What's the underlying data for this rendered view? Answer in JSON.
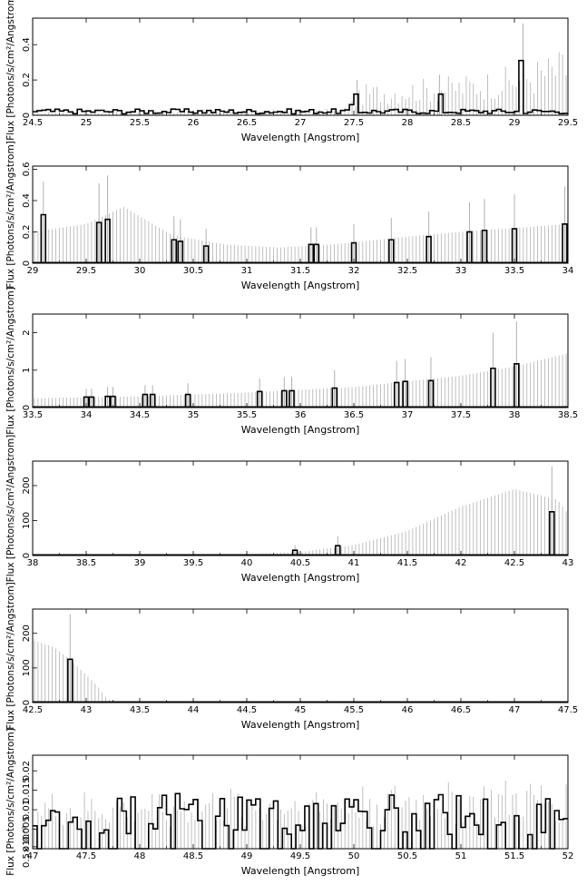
{
  "common": {
    "ylabel": "Flux [Photons/s/cm²/Angstrom]",
    "xlabel": "Wavelength [Angstrom]",
    "colors": {
      "hist": "#000000",
      "err": "#b0b0b0",
      "axis": "#000000"
    }
  },
  "chart_data": [
    {
      "type": "step-histogram-with-errorbars",
      "xlabel": "Wavelength [Angstrom]",
      "ylabel": "Flux [Photons/s/cm²/Angstrom]",
      "xlim": [
        24.5,
        29.5
      ],
      "ylim": [
        0,
        0.55
      ],
      "xticks": [
        "24.5",
        "25",
        "25.5",
        "26",
        "26.5",
        "27",
        "27.5",
        "28",
        "28.5",
        "29",
        "29.5"
      ],
      "yticks": [
        "0",
        "0.2",
        "0.4"
      ],
      "spikes": [
        [
          27.47,
          0.06
        ],
        [
          27.53,
          0.12
        ],
        [
          28.3,
          0.12
        ],
        [
          29.08,
          0.31
        ]
      ],
      "baseline": 0.02,
      "noise": true,
      "err_curve": [
        [
          24.5,
          0.01
        ],
        [
          27.4,
          0.02
        ],
        [
          27.6,
          0.1
        ],
        [
          28.5,
          0.13
        ],
        [
          29.0,
          0.16
        ],
        [
          29.5,
          0.22
        ]
      ],
      "err_spikes": [
        [
          27.53,
          0.2
        ],
        [
          28.3,
          0.23
        ],
        [
          29.08,
          0.52
        ]
      ]
    },
    {
      "type": "step-histogram-with-errorbars",
      "xlabel": "Wavelength [Angstrom]",
      "ylabel": "Flux [Photons/s/cm²/Angstrom]",
      "xlim": [
        29,
        34
      ],
      "ylim": [
        0,
        0.62
      ],
      "xticks": [
        "29",
        "29.5",
        "30",
        "30.5",
        "31",
        "31.5",
        "32",
        "32.5",
        "33",
        "33.5",
        "34"
      ],
      "yticks": [
        "0",
        "0.2",
        "0.4",
        "0.6"
      ],
      "spikes": [
        [
          29.1,
          0.31
        ],
        [
          29.62,
          0.26
        ],
        [
          29.7,
          0.28
        ],
        [
          30.32,
          0.15
        ],
        [
          30.38,
          0.14
        ],
        [
          30.62,
          0.11
        ],
        [
          31.6,
          0.12
        ],
        [
          31.65,
          0.12
        ],
        [
          32.0,
          0.13
        ],
        [
          32.35,
          0.15
        ],
        [
          32.7,
          0.17
        ],
        [
          33.08,
          0.2
        ],
        [
          33.22,
          0.21
        ],
        [
          33.5,
          0.22
        ],
        [
          33.97,
          0.25
        ]
      ],
      "baseline": 0.0,
      "noise": false,
      "err_curve": [
        [
          29.0,
          0.2
        ],
        [
          29.5,
          0.25
        ],
        [
          29.85,
          0.36
        ],
        [
          30.3,
          0.18
        ],
        [
          30.8,
          0.12
        ],
        [
          31.3,
          0.1
        ],
        [
          31.8,
          0.12
        ],
        [
          32.5,
          0.17
        ],
        [
          33.0,
          0.2
        ],
        [
          34.0,
          0.25
        ]
      ],
      "err_spikes": [
        [
          29.1,
          0.52
        ],
        [
          29.62,
          0.51
        ],
        [
          29.7,
          0.56
        ],
        [
          30.32,
          0.3
        ],
        [
          30.38,
          0.28
        ],
        [
          30.62,
          0.22
        ],
        [
          31.6,
          0.23
        ],
        [
          31.65,
          0.23
        ],
        [
          32.0,
          0.25
        ],
        [
          32.35,
          0.29
        ],
        [
          32.7,
          0.33
        ],
        [
          33.08,
          0.39
        ],
        [
          33.22,
          0.41
        ],
        [
          33.5,
          0.44
        ],
        [
          33.97,
          0.49
        ]
      ]
    },
    {
      "type": "step-histogram-with-errorbars",
      "xlabel": "Wavelength [Angstrom]",
      "ylabel": "Flux [Photons/s/cm²/Angstrom]",
      "xlim": [
        33.5,
        38.5
      ],
      "ylim": [
        0,
        2.5
      ],
      "xticks": [
        "33.5",
        "34",
        "34.5",
        "35",
        "35.5",
        "36",
        "36.5",
        "37",
        "37.5",
        "38",
        "38.5"
      ],
      "yticks": [
        "0",
        "1",
        "2"
      ],
      "spikes": [
        [
          34.0,
          0.28
        ],
        [
          34.05,
          0.28
        ],
        [
          34.2,
          0.3
        ],
        [
          34.25,
          0.3
        ],
        [
          34.55,
          0.35
        ],
        [
          34.62,
          0.35
        ],
        [
          34.95,
          0.35
        ],
        [
          35.62,
          0.43
        ],
        [
          35.85,
          0.45
        ],
        [
          35.92,
          0.45
        ],
        [
          36.32,
          0.52
        ],
        [
          36.9,
          0.67
        ],
        [
          36.98,
          0.7
        ],
        [
          37.22,
          0.72
        ],
        [
          37.8,
          1.05
        ],
        [
          38.02,
          1.17
        ]
      ],
      "baseline": 0.0,
      "noise": false,
      "err_curve": [
        [
          33.5,
          0.25
        ],
        [
          34.5,
          0.3
        ],
        [
          35.5,
          0.4
        ],
        [
          36.5,
          0.55
        ],
        [
          37.5,
          0.85
        ],
        [
          38.0,
          1.1
        ],
        [
          38.5,
          1.45
        ]
      ],
      "err_spikes": [
        [
          34.0,
          0.5
        ],
        [
          34.05,
          0.5
        ],
        [
          34.2,
          0.55
        ],
        [
          34.25,
          0.55
        ],
        [
          34.55,
          0.6
        ],
        [
          34.62,
          0.6
        ],
        [
          34.95,
          0.65
        ],
        [
          35.62,
          0.78
        ],
        [
          35.85,
          0.82
        ],
        [
          35.92,
          0.82
        ],
        [
          36.32,
          1.0
        ],
        [
          36.9,
          1.25
        ],
        [
          36.98,
          1.3
        ],
        [
          37.22,
          1.35
        ],
        [
          37.8,
          2.0
        ],
        [
          38.02,
          2.3
        ]
      ]
    },
    {
      "type": "step-histogram-with-errorbars",
      "xlabel": "Wavelength [Angstrom]",
      "ylabel": "Flux [Photons/s/cm²/Angstrom]",
      "xlim": [
        38,
        43
      ],
      "ylim": [
        0,
        270
      ],
      "xticks": [
        "38",
        "38.5",
        "39",
        "39.5",
        "40",
        "40.5",
        "41",
        "41.5",
        "42",
        "42.5",
        "43"
      ],
      "yticks": [
        "0",
        "100",
        "200"
      ],
      "spikes": [
        [
          40.45,
          15
        ],
        [
          40.85,
          28
        ],
        [
          42.85,
          125
        ]
      ],
      "baseline": 0.0,
      "noise": false,
      "err_curve": [
        [
          38.0,
          0
        ],
        [
          40.0,
          4
        ],
        [
          40.5,
          10
        ],
        [
          41.0,
          30
        ],
        [
          41.5,
          70
        ],
        [
          42.0,
          140
        ],
        [
          42.5,
          190
        ],
        [
          42.9,
          160
        ],
        [
          43.0,
          120
        ]
      ],
      "err_spikes": [
        [
          40.45,
          30
        ],
        [
          40.85,
          55
        ],
        [
          42.85,
          255
        ]
      ]
    },
    {
      "type": "step-histogram-with-errorbars",
      "xlabel": "Wavelength [Angstrom]",
      "ylabel": "Flux [Photons/s/cm²/Angstrom]",
      "xlim": [
        42.5,
        47.5
      ],
      "ylim": [
        0,
        270
      ],
      "xticks": [
        "42.5",
        "43",
        "43.5",
        "44",
        "44.5",
        "45",
        "45.5",
        "46",
        "46.5",
        "47",
        "47.5"
      ],
      "yticks": [
        "0",
        "100",
        "200"
      ],
      "spikes": [
        [
          42.85,
          125
        ]
      ],
      "baseline": 0.0,
      "noise": false,
      "err_curve": [
        [
          42.5,
          180
        ],
        [
          42.7,
          160
        ],
        [
          42.9,
          110
        ],
        [
          43.1,
          50
        ],
        [
          43.2,
          10
        ],
        [
          43.3,
          0
        ]
      ],
      "err_spikes": [
        [
          42.85,
          255
        ]
      ]
    },
    {
      "type": "step-histogram-with-errorbars",
      "xlabel": "Wavelength [Angstrom]",
      "ylabel": "Flux [Photons/s/cm²/Angstrom]",
      "xlim": [
        47,
        52
      ],
      "ylim": [
        0,
        0.024
      ],
      "xticks": [
        "47",
        "47.5",
        "48",
        "48.5",
        "49",
        "49.5",
        "50",
        "50.5",
        "51",
        "51.5",
        "52"
      ],
      "yticks": [
        "0",
        "0.5×10⁻³",
        "0.005",
        "0.01",
        "0.015",
        "0.02"
      ],
      "spikes": [],
      "baseline": 0.0,
      "noise": true,
      "err_curve": [
        [
          47,
          0.008
        ],
        [
          52,
          0.01
        ]
      ],
      "err_spikes": []
    }
  ]
}
